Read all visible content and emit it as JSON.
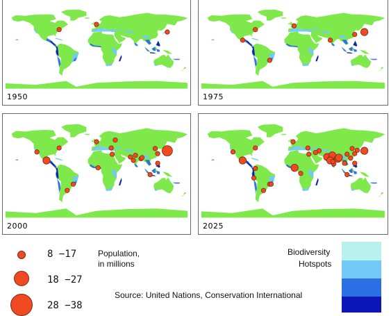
{
  "colors": {
    "land": "#7fe84a",
    "ocean": "#ffffff",
    "population": "#f04a22",
    "hotspot_levels": [
      "#b9f1ef",
      "#72c9f5",
      "#2a6fe3",
      "#0d17b8"
    ]
  },
  "maps": [
    {
      "year": "1950",
      "cities": [
        {
          "lon": -74,
          "lat": 41,
          "size": 1
        },
        {
          "lon": 0,
          "lat": 52,
          "size": 1
        },
        {
          "lon": 140,
          "lat": 36,
          "size": 1
        }
      ]
    },
    {
      "year": "1975",
      "cities": [
        {
          "lon": -74,
          "lat": 41,
          "size": 1
        },
        {
          "lon": -99,
          "lat": 19,
          "size": 1
        },
        {
          "lon": -46,
          "lat": -23,
          "size": 1
        },
        {
          "lon": 2,
          "lat": 49,
          "size": 1
        },
        {
          "lon": 73,
          "lat": 19,
          "size": 1
        },
        {
          "lon": 121,
          "lat": 31,
          "size": 1
        },
        {
          "lon": 140,
          "lat": 36,
          "size": 2
        }
      ]
    },
    {
      "year": "2000",
      "cities": [
        {
          "lon": -118,
          "lat": 34,
          "size": 1
        },
        {
          "lon": -99,
          "lat": 19,
          "size": 2
        },
        {
          "lon": -74,
          "lat": 41,
          "size": 1
        },
        {
          "lon": -46,
          "lat": -23,
          "size": 1
        },
        {
          "lon": -58,
          "lat": -34,
          "size": 1
        },
        {
          "lon": 0,
          "lat": 52,
          "size": 1
        },
        {
          "lon": 3,
          "lat": 6,
          "size": 1
        },
        {
          "lon": 31,
          "lat": 30,
          "size": 1
        },
        {
          "lon": 29,
          "lat": 41,
          "size": 1
        },
        {
          "lon": 37,
          "lat": 55,
          "size": 1
        },
        {
          "lon": 67,
          "lat": 25,
          "size": 1
        },
        {
          "lon": 77,
          "lat": 28,
          "size": 1
        },
        {
          "lon": 73,
          "lat": 19,
          "size": 1
        },
        {
          "lon": 88,
          "lat": 22,
          "size": 1
        },
        {
          "lon": 90,
          "lat": 24,
          "size": 1
        },
        {
          "lon": 116,
          "lat": 40,
          "size": 1
        },
        {
          "lon": 121,
          "lat": 31,
          "size": 1
        },
        {
          "lon": 106,
          "lat": -6,
          "size": 1
        },
        {
          "lon": 121,
          "lat": 14,
          "size": 1
        },
        {
          "lon": 140,
          "lat": 36,
          "size": 3
        }
      ]
    },
    {
      "year": "2025",
      "cities": [
        {
          "lon": -118,
          "lat": 34,
          "size": 1
        },
        {
          "lon": -99,
          "lat": 19,
          "size": 2
        },
        {
          "lon": -74,
          "lat": 41,
          "size": 1
        },
        {
          "lon": -46,
          "lat": -23,
          "size": 1
        },
        {
          "lon": -43,
          "lat": -23,
          "size": 1
        },
        {
          "lon": -58,
          "lat": -34,
          "size": 1
        },
        {
          "lon": -77,
          "lat": -12,
          "size": 1
        },
        {
          "lon": -74,
          "lat": 5,
          "size": 1
        },
        {
          "lon": 0,
          "lat": 52,
          "size": 1
        },
        {
          "lon": 3,
          "lat": 6,
          "size": 2
        },
        {
          "lon": 15,
          "lat": -4,
          "size": 1
        },
        {
          "lon": 31,
          "lat": 30,
          "size": 1
        },
        {
          "lon": 29,
          "lat": 41,
          "size": 1
        },
        {
          "lon": 51,
          "lat": 36,
          "size": 1
        },
        {
          "lon": 44,
          "lat": 33,
          "size": 1
        },
        {
          "lon": 67,
          "lat": 25,
          "size": 2
        },
        {
          "lon": 77,
          "lat": 28,
          "size": 2
        },
        {
          "lon": 73,
          "lat": 19,
          "size": 2
        },
        {
          "lon": 88,
          "lat": 22,
          "size": 2
        },
        {
          "lon": 90,
          "lat": 24,
          "size": 2
        },
        {
          "lon": 80,
          "lat": 13,
          "size": 1
        },
        {
          "lon": 78,
          "lat": 17,
          "size": 1
        },
        {
          "lon": 101,
          "lat": 14,
          "size": 1
        },
        {
          "lon": 106,
          "lat": -6,
          "size": 1
        },
        {
          "lon": 121,
          "lat": 14,
          "size": 1
        },
        {
          "lon": 113,
          "lat": 23,
          "size": 1
        },
        {
          "lon": 116,
          "lat": 40,
          "size": 1
        },
        {
          "lon": 121,
          "lat": 31,
          "size": 1
        },
        {
          "lon": 106,
          "lat": 30,
          "size": 1
        },
        {
          "lon": 126,
          "lat": 37,
          "size": 1
        },
        {
          "lon": 140,
          "lat": 36,
          "size": 2
        }
      ]
    }
  ],
  "legend": {
    "population_title": "Population,",
    "population_subtitle": "in millions",
    "ranges": [
      "8 −17",
      "18 −27",
      "28 −38"
    ],
    "source": "Source: United Nations, Conservation International",
    "hotspots_title": "Biodiversity",
    "hotspots_subtitle": "Hotspots"
  }
}
